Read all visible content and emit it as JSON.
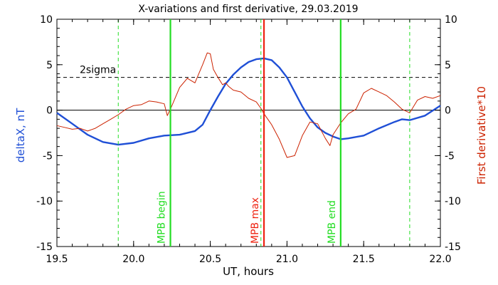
{
  "chart_data": {
    "type": "line",
    "title": "X-variations and first derivative, 29.03.2019",
    "xlabel": "UT, hours",
    "ylabel": "deltaX, nT",
    "y2label": "First derivative*10",
    "xlim": [
      19.5,
      22.0
    ],
    "ylim": [
      -15,
      10
    ],
    "y2lim": [
      -15,
      10
    ],
    "x_ticks": [
      19.5,
      20.0,
      20.5,
      21.0,
      21.5,
      22.0
    ],
    "x_tick_labels": [
      "19.5",
      "20.0",
      "20.5",
      "21.0",
      "21.5",
      "22.0"
    ],
    "y_ticks": [
      -15,
      -10,
      -5,
      0,
      5,
      10
    ],
    "y_tick_labels": [
      "-15",
      "-10",
      "-5",
      "0",
      "5",
      "10"
    ],
    "y2_tick_labels": [
      "-15",
      "-10",
      "-5",
      "0",
      "5",
      "10"
    ],
    "grid": false,
    "colors": {
      "deltaX": "#1f4fd6",
      "derivative": "#cc2200",
      "markers": "#22dd22",
      "mpb_max": "#ee2211",
      "reference": "#000000"
    },
    "series": [
      {
        "key": "deltaX",
        "axis": "left",
        "x": [
          19.5,
          19.6,
          19.7,
          19.8,
          19.9,
          20.0,
          20.1,
          20.2,
          20.3,
          20.4,
          20.45,
          20.5,
          20.55,
          20.6,
          20.65,
          20.7,
          20.75,
          20.8,
          20.85,
          20.9,
          20.95,
          21.0,
          21.05,
          21.1,
          21.15,
          21.2,
          21.25,
          21.3,
          21.35,
          21.4,
          21.5,
          21.6,
          21.7,
          21.75,
          21.8,
          21.9,
          22.0
        ],
        "y": [
          -0.3,
          -1.5,
          -2.7,
          -3.5,
          -3.8,
          -3.6,
          -3.1,
          -2.8,
          -2.7,
          -2.3,
          -1.6,
          0.0,
          1.5,
          2.9,
          3.9,
          4.7,
          5.3,
          5.6,
          5.7,
          5.5,
          4.7,
          3.6,
          2.0,
          0.4,
          -0.9,
          -1.9,
          -2.5,
          -2.9,
          -3.2,
          -3.1,
          -2.8,
          -2.0,
          -1.3,
          -1.0,
          -1.1,
          -0.6,
          0.5
        ]
      },
      {
        "key": "derivative",
        "axis": "right",
        "x": [
          19.5,
          19.55,
          19.6,
          19.65,
          19.7,
          19.75,
          19.8,
          19.85,
          19.9,
          19.95,
          20.0,
          20.05,
          20.1,
          20.15,
          20.2,
          20.22,
          20.25,
          20.3,
          20.35,
          20.4,
          20.45,
          20.48,
          20.5,
          20.52,
          20.55,
          20.58,
          20.6,
          20.62,
          20.65,
          20.7,
          20.75,
          20.8,
          20.83,
          20.85,
          20.9,
          20.95,
          21.0,
          21.05,
          21.1,
          21.15,
          21.2,
          21.25,
          21.28,
          21.3,
          21.35,
          21.4,
          21.45,
          21.5,
          21.55,
          21.6,
          21.65,
          21.7,
          21.75,
          21.8,
          21.85,
          21.9,
          21.95,
          22.0
        ],
        "y": [
          -1.7,
          -1.9,
          -2.1,
          -2.0,
          -2.3,
          -2.0,
          -1.5,
          -1.0,
          -0.5,
          0.1,
          0.5,
          0.6,
          1.0,
          0.9,
          0.7,
          -0.6,
          0.5,
          2.5,
          3.5,
          3.0,
          5.0,
          6.3,
          6.2,
          4.5,
          3.6,
          2.8,
          3.0,
          2.6,
          2.2,
          2.0,
          1.3,
          0.9,
          0.2,
          -0.4,
          -1.6,
          -3.2,
          -5.2,
          -5.0,
          -2.8,
          -1.3,
          -1.5,
          -3.1,
          -3.9,
          -2.7,
          -1.4,
          -0.4,
          0.1,
          1.9,
          2.4,
          2.0,
          1.6,
          0.9,
          0.1,
          -0.3,
          1.1,
          1.5,
          1.3,
          1.6
        ]
      }
    ],
    "reference_lines": [
      {
        "key": "zero",
        "y": 0,
        "style": "solid"
      },
      {
        "key": "twosigma",
        "y": 3.6,
        "style": "dashed",
        "label": "2sigma"
      }
    ],
    "vertical_lines": [
      {
        "key": "dash1",
        "x": 19.9,
        "style": "dashed",
        "label": ""
      },
      {
        "key": "mpb-begin",
        "x": 20.24,
        "style": "solid",
        "label": "MPB begin"
      },
      {
        "key": "dash2",
        "x": 20.83,
        "style": "dashed",
        "label": ""
      },
      {
        "key": "mpb-max",
        "x": 20.85,
        "style": "solid-red",
        "label": "MPB max"
      },
      {
        "key": "mpb-end",
        "x": 21.35,
        "style": "solid",
        "label": "MPB end"
      },
      {
        "key": "dash3",
        "x": 21.8,
        "style": "dashed",
        "label": ""
      }
    ]
  }
}
